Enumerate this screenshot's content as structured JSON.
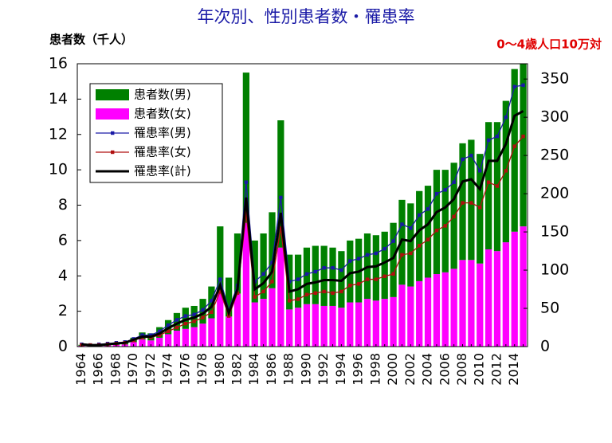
{
  "chart_data": {
    "type": "bar",
    "stacked": true,
    "title": "年次別、性別患者数・罹患率",
    "y_label": "患者数（千人）",
    "y2_label": "0～4歳人口10万対",
    "categories": [
      "1964",
      null,
      "1966",
      null,
      "1968",
      null,
      "1970",
      null,
      "1972",
      null,
      "1974",
      null,
      "1976",
      null,
      "1978",
      null,
      "1980",
      null,
      "1982",
      null,
      "1984",
      null,
      "1986",
      null,
      "1988",
      null,
      "1990",
      null,
      "1992",
      null,
      "1994",
      null,
      "1996",
      null,
      "1998",
      null,
      "2000",
      null,
      "2002",
      null,
      "2004",
      null,
      "2006",
      null,
      "2008",
      null,
      "2010",
      null,
      "2012",
      null,
      "2014",
      null
    ],
    "ylim": [
      0,
      16
    ],
    "yticks": [
      0,
      2,
      4,
      6,
      8,
      10,
      12,
      14,
      16
    ],
    "y2lim": [
      0,
      370
    ],
    "y2ticks": [
      0,
      50,
      100,
      150,
      200,
      250,
      300,
      350
    ],
    "series": [
      {
        "name": "患者数(女)",
        "type": "bar",
        "color": "#ff00ff",
        "values": [
          0.05,
          0.05,
          0.05,
          0.07,
          0.1,
          0.12,
          0.25,
          0.4,
          0.35,
          0.5,
          0.7,
          0.9,
          1.0,
          1.1,
          1.3,
          1.6,
          3.0,
          1.7,
          3.0,
          7.0,
          2.5,
          2.7,
          3.3,
          5.6,
          2.1,
          2.2,
          2.4,
          2.4,
          2.3,
          2.3,
          2.2,
          2.5,
          2.5,
          2.7,
          2.6,
          2.7,
          2.8,
          3.5,
          3.4,
          3.7,
          3.9,
          4.1,
          4.2,
          4.4,
          4.9,
          4.9,
          4.7,
          5.5,
          5.4,
          5.9,
          6.5,
          6.8
        ]
      },
      {
        "name": "患者数(男)",
        "type": "bar",
        "color": "#008000",
        "values": [
          0.05,
          0.05,
          0.05,
          0.08,
          0.1,
          0.13,
          0.25,
          0.4,
          0.4,
          0.6,
          0.8,
          1.0,
          1.2,
          1.2,
          1.4,
          1.8,
          3.8,
          2.2,
          3.4,
          8.5,
          3.5,
          3.7,
          4.3,
          7.2,
          3.1,
          3.0,
          3.2,
          3.3,
          3.4,
          3.3,
          3.2,
          3.5,
          3.6,
          3.7,
          3.7,
          3.8,
          4.2,
          4.8,
          4.7,
          5.1,
          5.2,
          5.9,
          5.8,
          6.0,
          6.6,
          6.8,
          6.2,
          7.2,
          7.3,
          8.0,
          9.2,
          9.2
        ]
      },
      {
        "name": "罹患率(男)",
        "type": "line",
        "axis": "y2",
        "color": "#1a1aa6",
        "marker": true,
        "values": [
          3,
          2,
          3,
          4,
          5,
          6,
          10,
          15,
          15,
          20,
          28,
          35,
          40,
          42,
          48,
          60,
          88,
          48,
          80,
          215,
          85,
          95,
          110,
          195,
          85,
          88,
          95,
          98,
          103,
          103,
          100,
          112,
          115,
          120,
          122,
          128,
          138,
          160,
          155,
          172,
          180,
          200,
          205,
          215,
          245,
          250,
          230,
          270,
          275,
          300,
          340,
          342
        ]
      },
      {
        "name": "罹患率(女)",
        "type": "line",
        "axis": "y2",
        "color": "#b01010",
        "marker": true,
        "values": [
          2,
          2,
          2,
          3,
          4,
          5,
          8,
          12,
          12,
          15,
          20,
          25,
          30,
          33,
          38,
          45,
          72,
          40,
          70,
          175,
          65,
          72,
          85,
          155,
          60,
          62,
          68,
          70,
          72,
          70,
          72,
          80,
          82,
          88,
          88,
          92,
          95,
          120,
          122,
          132,
          140,
          152,
          158,
          170,
          188,
          188,
          182,
          215,
          210,
          230,
          262,
          275
        ]
      },
      {
        "name": "罹患率(計)",
        "type": "line",
        "axis": "y2",
        "color": "#000000",
        "marker": false,
        "values": [
          3,
          2,
          2,
          3,
          4,
          5,
          9,
          13,
          13,
          17,
          24,
          30,
          35,
          38,
          43,
          52,
          80,
          44,
          75,
          195,
          75,
          83,
          98,
          175,
          72,
          75,
          82,
          84,
          87,
          87,
          86,
          96,
          98,
          104,
          105,
          110,
          116,
          140,
          138,
          152,
          160,
          176,
          182,
          193,
          216,
          219,
          206,
          243,
          243,
          265,
          302,
          308
        ]
      }
    ],
    "legend_order": [
      1,
      0,
      2,
      3,
      4
    ]
  }
}
